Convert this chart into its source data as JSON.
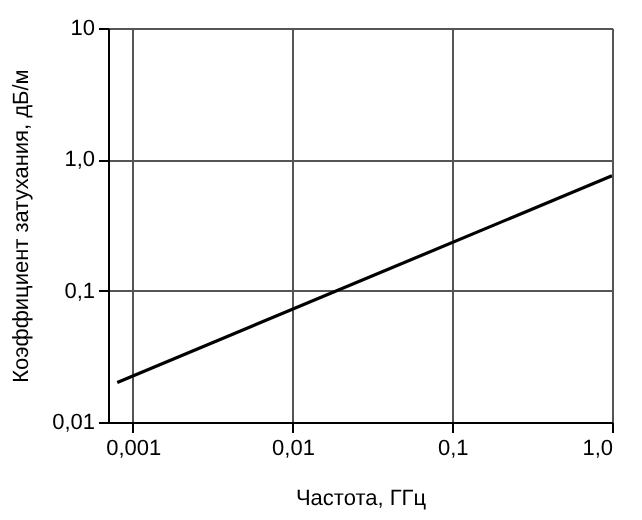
{
  "chart_data": {
    "type": "line",
    "xlabel": "Частота, ГГц",
    "ylabel": "Коэффициент затухания, дБ/м",
    "log": "xy",
    "grid": true,
    "marker": "none",
    "line_style": "solid",
    "xlim": [
      0.0007,
      1.0
    ],
    "ylim": [
      0.01,
      10
    ],
    "xticks": [
      {
        "value": 0.001,
        "label": "0,001"
      },
      {
        "value": 0.01,
        "label": "0,01"
      },
      {
        "value": 0.1,
        "label": "0,1"
      },
      {
        "value": 1.0,
        "label": "1,0"
      }
    ],
    "yticks": [
      {
        "value": 0.01,
        "label": "0,01"
      },
      {
        "value": 0.1,
        "label": "0,1"
      },
      {
        "value": 1.0,
        "label": "1,0"
      },
      10
    ],
    "series": [
      {
        "color": "#000000",
        "x": [
          0.0008,
          1.0
        ],
        "values": [
          0.02,
          0.75
        ]
      }
    ]
  }
}
